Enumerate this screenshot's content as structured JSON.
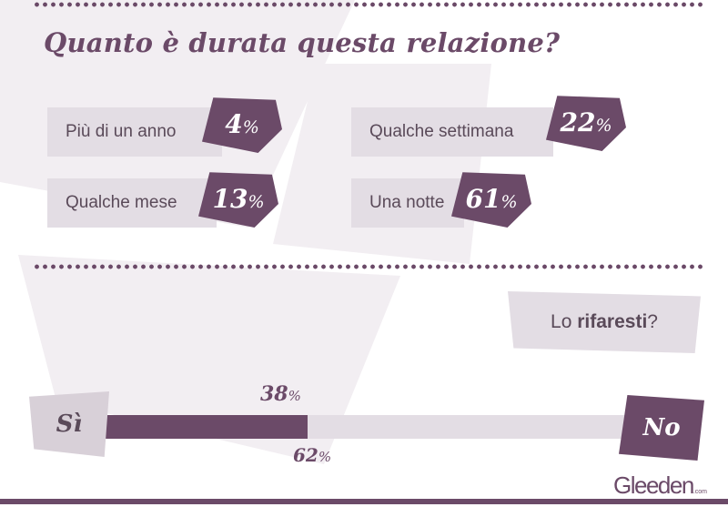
{
  "title": "Quanto è durata questa relazione?",
  "chart_data": [
    {
      "type": "bar",
      "title": "Quanto è durata questa relazione?",
      "categories": [
        "Più di un anno",
        "Qualche settimana",
        "Qualche mese",
        "Una notte"
      ],
      "values": [
        4,
        22,
        13,
        61
      ],
      "unit": "%"
    },
    {
      "type": "bar",
      "title": "Lo rifaresti?",
      "categories": [
        "Sì",
        "No"
      ],
      "values": [
        38,
        62
      ],
      "unit": "%"
    }
  ],
  "duration": {
    "options": [
      {
        "label": "Più di un anno",
        "value": "4",
        "unit": "%"
      },
      {
        "label": "Qualche settimana",
        "value": "22",
        "unit": "%"
      },
      {
        "label": "Qualche mese",
        "value": "13",
        "unit": "%"
      },
      {
        "label": "Una notte",
        "value": "61",
        "unit": "%"
      }
    ]
  },
  "again": {
    "question_prefix": "Lo ",
    "question_bold": "rifaresti",
    "question_suffix": "?",
    "yes_label": "Sì",
    "no_label": "No",
    "yes_value": "38",
    "no_value": "62",
    "unit": "%"
  },
  "colors": {
    "accent": "#6b4a68",
    "light": "#e3dde4"
  },
  "logo": {
    "text": "Gleeden",
    "suffix": ".com"
  }
}
